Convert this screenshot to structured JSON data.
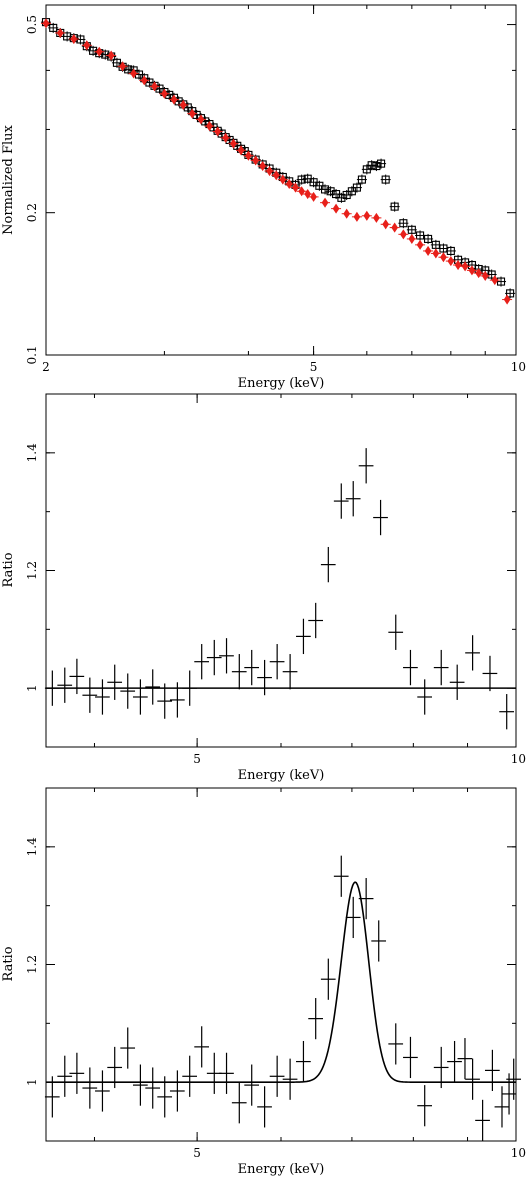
{
  "chart_data": [
    {
      "type": "scatter",
      "xlabel": "Energy (keV)",
      "ylabel": "Normalized Flux",
      "xscale": "log",
      "yscale": "log",
      "xlim": [
        2,
        10
      ],
      "ylim": [
        0.1,
        0.55
      ],
      "xticks": [
        {
          "v": 2,
          "label": "2"
        },
        {
          "v": 5,
          "label": "5"
        },
        {
          "v": 10,
          "label": "10"
        }
      ],
      "yticks": [
        {
          "v": 0.1,
          "label": "0.1"
        },
        {
          "v": 0.2,
          "label": "0.2"
        },
        {
          "v": 0.5,
          "label": "0.5"
        }
      ],
      "series": [
        {
          "color": "#000000",
          "marker": "open-square",
          "points": [
            [
              2.0,
              0.506
            ],
            [
              2.05,
              0.492
            ],
            [
              2.1,
              0.48
            ],
            [
              2.15,
              0.472
            ],
            [
              2.2,
              0.468
            ],
            [
              2.25,
              0.465
            ],
            [
              2.3,
              0.45
            ],
            [
              2.35,
              0.44
            ],
            [
              2.4,
              0.435
            ],
            [
              2.45,
              0.432
            ],
            [
              2.5,
              0.428
            ],
            [
              2.55,
              0.415
            ],
            [
              2.6,
              0.407
            ],
            [
              2.65,
              0.402
            ],
            [
              2.7,
              0.4
            ],
            [
              2.75,
              0.392
            ],
            [
              2.8,
              0.385
            ],
            [
              2.85,
              0.377
            ],
            [
              2.9,
              0.371
            ],
            [
              2.95,
              0.366
            ],
            [
              3.0,
              0.36
            ],
            [
              3.05,
              0.355
            ],
            [
              3.1,
              0.35
            ],
            [
              3.15,
              0.344
            ],
            [
              3.2,
              0.339
            ],
            [
              3.25,
              0.334
            ],
            [
              3.3,
              0.328
            ],
            [
              3.35,
              0.322
            ],
            [
              3.4,
              0.317
            ],
            [
              3.45,
              0.312
            ],
            [
              3.5,
              0.308
            ],
            [
              3.55,
              0.303
            ],
            [
              3.6,
              0.298
            ],
            [
              3.65,
              0.294
            ],
            [
              3.7,
              0.289
            ],
            [
              3.75,
              0.285
            ],
            [
              3.8,
              0.281
            ],
            [
              3.85,
              0.277
            ],
            [
              3.9,
              0.273
            ],
            [
              3.95,
              0.27
            ],
            [
              4.0,
              0.265
            ],
            [
              4.1,
              0.259
            ],
            [
              4.2,
              0.253
            ],
            [
              4.3,
              0.248
            ],
            [
              4.4,
              0.243
            ],
            [
              4.5,
              0.238
            ],
            [
              4.6,
              0.233
            ],
            [
              4.7,
              0.229
            ],
            [
              4.8,
              0.235
            ],
            [
              4.9,
              0.236
            ],
            [
              5.0,
              0.232
            ],
            [
              5.1,
              0.228
            ],
            [
              5.2,
              0.224
            ],
            [
              5.3,
              0.222
            ],
            [
              5.4,
              0.219
            ],
            [
              5.5,
              0.215
            ],
            [
              5.6,
              0.218
            ],
            [
              5.7,
              0.222
            ],
            [
              5.8,
              0.226
            ],
            [
              5.9,
              0.235
            ],
            [
              6.0,
              0.247
            ],
            [
              6.1,
              0.252
            ],
            [
              6.2,
              0.251
            ],
            [
              6.3,
              0.254
            ],
            [
              6.4,
              0.235
            ],
            [
              6.6,
              0.206
            ],
            [
              6.8,
              0.19
            ],
            [
              7.0,
              0.184
            ],
            [
              7.2,
              0.179
            ],
            [
              7.4,
              0.176
            ],
            [
              7.6,
              0.171
            ],
            [
              7.8,
              0.168
            ],
            [
              8.0,
              0.166
            ],
            [
              8.2,
              0.159
            ],
            [
              8.4,
              0.157
            ],
            [
              8.6,
              0.155
            ],
            [
              8.8,
              0.152
            ],
            [
              9.0,
              0.151
            ],
            [
              9.2,
              0.148
            ],
            [
              9.5,
              0.143
            ],
            [
              9.8,
              0.135
            ]
          ]
        },
        {
          "color": "#e8201a",
          "marker": "diamond",
          "points": [
            [
              2.0,
              0.503
            ],
            [
              2.1,
              0.48
            ],
            [
              2.2,
              0.466
            ],
            [
              2.3,
              0.452
            ],
            [
              2.4,
              0.438
            ],
            [
              2.5,
              0.43
            ],
            [
              2.6,
              0.408
            ],
            [
              2.7,
              0.394
            ],
            [
              2.8,
              0.381
            ],
            [
              2.9,
              0.37
            ],
            [
              3.0,
              0.357
            ],
            [
              3.1,
              0.347
            ],
            [
              3.2,
              0.338
            ],
            [
              3.3,
              0.324
            ],
            [
              3.4,
              0.315
            ],
            [
              3.5,
              0.305
            ],
            [
              3.6,
              0.297
            ],
            [
              3.7,
              0.288
            ],
            [
              3.8,
              0.28
            ],
            [
              3.9,
              0.271
            ],
            [
              4.0,
              0.264
            ],
            [
              4.1,
              0.258
            ],
            [
              4.2,
              0.251
            ],
            [
              4.3,
              0.245
            ],
            [
              4.4,
              0.24
            ],
            [
              4.5,
              0.235
            ],
            [
              4.6,
              0.23
            ],
            [
              4.7,
              0.226
            ],
            [
              4.8,
              0.222
            ],
            [
              4.9,
              0.219
            ],
            [
              5.0,
              0.216
            ],
            [
              5.2,
              0.21
            ],
            [
              5.4,
              0.204
            ],
            [
              5.6,
              0.199
            ],
            [
              5.8,
              0.196
            ],
            [
              6.0,
              0.197
            ],
            [
              6.2,
              0.195
            ],
            [
              6.4,
              0.189
            ],
            [
              6.6,
              0.186
            ],
            [
              6.8,
              0.18
            ],
            [
              7.0,
              0.176
            ],
            [
              7.2,
              0.171
            ],
            [
              7.4,
              0.166
            ],
            [
              7.6,
              0.164
            ],
            [
              7.8,
              0.161
            ],
            [
              8.0,
              0.158
            ],
            [
              8.2,
              0.155
            ],
            [
              8.4,
              0.154
            ],
            [
              8.6,
              0.151
            ],
            [
              8.8,
              0.149
            ],
            [
              9.0,
              0.147
            ],
            [
              9.3,
              0.144
            ],
            [
              9.7,
              0.131
            ]
          ]
        }
      ]
    },
    {
      "type": "scatter",
      "xlabel": "Energy (keV)",
      "ylabel": "Ratio",
      "xscale": "log",
      "xlim": [
        3.6,
        10
      ],
      "ylim": [
        0.9,
        1.5
      ],
      "xticks": [
        {
          "v": 5,
          "label": "5"
        },
        {
          "v": 10,
          "label": "10"
        }
      ],
      "yticks": [
        {
          "v": 1.0,
          "label": "1"
        },
        {
          "v": 1.2,
          "label": "1.2"
        },
        {
          "v": 1.4,
          "label": "1.4"
        }
      ],
      "reference_line": 1.0,
      "points": [
        [
          3.65,
          1.0,
          0.03,
          0.016
        ],
        [
          3.75,
          1.005,
          0.03,
          0.016
        ],
        [
          3.85,
          1.02,
          0.03,
          0.016
        ],
        [
          3.96,
          0.988,
          0.03,
          0.016
        ],
        [
          4.07,
          0.985,
          0.03,
          0.016
        ],
        [
          4.18,
          1.01,
          0.03,
          0.016
        ],
        [
          4.3,
          0.995,
          0.03,
          0.016
        ],
        [
          4.42,
          0.985,
          0.03,
          0.016
        ],
        [
          4.54,
          1.002,
          0.03,
          0.016
        ],
        [
          4.66,
          0.978,
          0.03,
          0.016
        ],
        [
          4.79,
          0.98,
          0.03,
          0.016
        ],
        [
          4.92,
          1.0,
          0.03,
          0.016
        ],
        [
          5.05,
          1.045,
          0.03,
          0.016
        ],
        [
          5.19,
          1.052,
          0.03,
          0.016
        ],
        [
          5.33,
          1.055,
          0.03,
          0.016
        ],
        [
          5.48,
          1.028,
          0.03,
          0.016
        ],
        [
          5.63,
          1.035,
          0.03,
          0.016
        ],
        [
          5.79,
          1.018,
          0.03,
          0.016
        ],
        [
          5.95,
          1.045,
          0.03,
          0.016
        ],
        [
          6.12,
          1.028,
          0.03,
          0.016
        ],
        [
          6.3,
          1.088,
          0.03,
          0.016
        ],
        [
          6.47,
          1.115,
          0.03,
          0.016
        ],
        [
          6.65,
          1.21,
          0.03,
          0.016
        ],
        [
          6.84,
          1.318,
          0.03,
          0.016
        ],
        [
          7.02,
          1.322,
          0.03,
          0.016
        ],
        [
          7.22,
          1.378,
          0.03,
          0.016
        ],
        [
          7.45,
          1.29,
          0.03,
          0.016
        ],
        [
          7.7,
          1.095,
          0.03,
          0.016
        ],
        [
          7.95,
          1.035,
          0.03,
          0.016
        ],
        [
          8.2,
          0.985,
          0.03,
          0.016
        ],
        [
          8.5,
          1.035,
          0.03,
          0.016
        ],
        [
          8.8,
          1.01,
          0.03,
          0.016
        ],
        [
          9.1,
          1.06,
          0.03,
          0.016
        ],
        [
          9.45,
          1.025,
          0.03,
          0.016
        ],
        [
          9.8,
          0.96,
          0.03,
          0.016
        ]
      ]
    },
    {
      "type": "scatter",
      "xlabel": "Energy (keV)",
      "ylabel": "Ratio",
      "xscale": "log",
      "xlim": [
        3.6,
        10
      ],
      "ylim": [
        0.9,
        1.5
      ],
      "xticks": [
        {
          "v": 5,
          "label": "5"
        },
        {
          "v": 10,
          "label": "10"
        }
      ],
      "yticks": [
        {
          "v": 1.0,
          "label": "1"
        },
        {
          "v": 1.2,
          "label": "1.2"
        },
        {
          "v": 1.4,
          "label": "1.4"
        }
      ],
      "model": {
        "shape": "gaussian",
        "baseline": 1.0,
        "center": 7.05,
        "sigma": 0.21,
        "amplitude": 0.34
      },
      "points": [
        [
          3.65,
          0.975,
          0.035,
          0.016
        ],
        [
          3.75,
          1.01,
          0.035,
          0.016
        ],
        [
          3.85,
          1.015,
          0.035,
          0.016
        ],
        [
          3.96,
          0.99,
          0.035,
          0.016
        ],
        [
          4.07,
          0.985,
          0.035,
          0.016
        ],
        [
          4.18,
          1.025,
          0.035,
          0.016
        ],
        [
          4.3,
          1.058,
          0.035,
          0.016
        ],
        [
          4.42,
          0.995,
          0.035,
          0.016
        ],
        [
          4.54,
          0.99,
          0.035,
          0.016
        ],
        [
          4.66,
          0.975,
          0.035,
          0.016
        ],
        [
          4.79,
          0.985,
          0.035,
          0.016
        ],
        [
          4.92,
          1.01,
          0.035,
          0.016
        ],
        [
          5.05,
          1.06,
          0.035,
          0.016
        ],
        [
          5.19,
          1.015,
          0.035,
          0.016
        ],
        [
          5.33,
          1.015,
          0.035,
          0.016
        ],
        [
          5.48,
          0.965,
          0.035,
          0.016
        ],
        [
          5.63,
          0.995,
          0.035,
          0.016
        ],
        [
          5.79,
          0.958,
          0.035,
          0.016
        ],
        [
          5.95,
          1.01,
          0.035,
          0.016
        ],
        [
          6.12,
          1.005,
          0.035,
          0.016
        ],
        [
          6.3,
          1.035,
          0.035,
          0.016
        ],
        [
          6.47,
          1.108,
          0.035,
          0.016
        ],
        [
          6.65,
          1.175,
          0.035,
          0.016
        ],
        [
          6.84,
          1.35,
          0.035,
          0.016
        ],
        [
          7.02,
          1.28,
          0.035,
          0.016
        ],
        [
          7.22,
          1.312,
          0.035,
          0.016
        ],
        [
          7.42,
          1.24,
          0.035,
          0.016
        ],
        [
          7.7,
          1.065,
          0.035,
          0.016
        ],
        [
          7.95,
          1.042,
          0.035,
          0.016
        ],
        [
          8.2,
          0.96,
          0.035,
          0.016
        ],
        [
          8.5,
          1.025,
          0.035,
          0.016
        ],
        [
          8.75,
          1.035,
          0.035,
          0.016
        ],
        [
          8.95,
          1.04,
          0.035,
          0.016
        ],
        [
          9.1,
          1.005,
          0.035,
          0.016
        ],
        [
          9.3,
          0.935,
          0.035,
          0.016
        ],
        [
          9.5,
          1.02,
          0.035,
          0.016
        ],
        [
          9.7,
          0.958,
          0.035,
          0.016
        ],
        [
          9.85,
          0.98,
          0.035,
          0.016
        ],
        [
          9.95,
          1.005,
          0.035,
          0.016
        ]
      ]
    }
  ]
}
